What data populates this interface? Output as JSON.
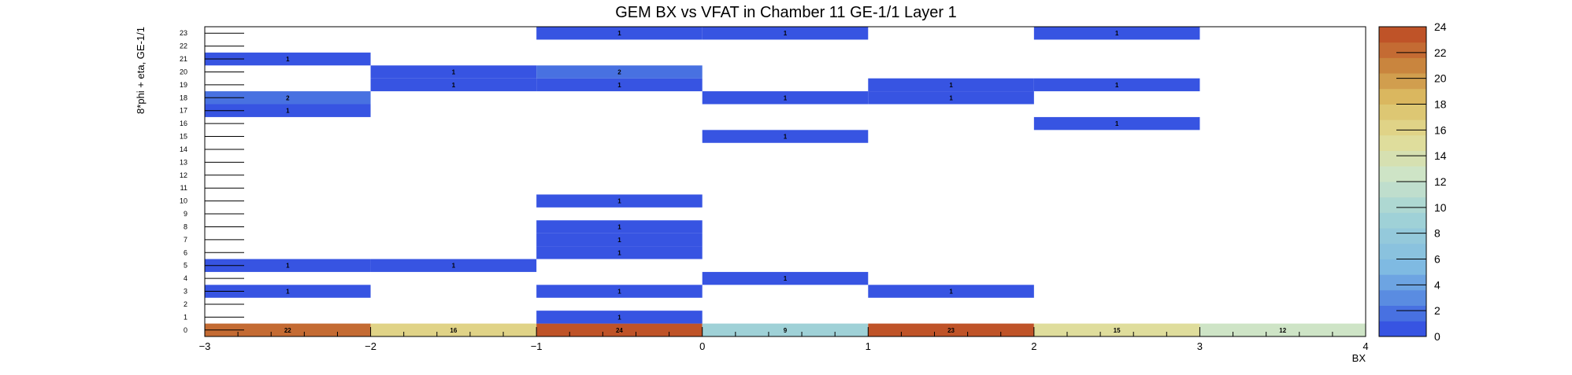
{
  "chart_data": {
    "type": "heatmap",
    "title": "GEM BX vs VFAT in Chamber 11 GE-1/1 Layer 1",
    "xlabel": "BX",
    "ylabel": "8*phi + eta, GE-1/1",
    "xlim": [
      -3,
      4
    ],
    "ylim": [
      0,
      24
    ],
    "x_ticks": [
      "−3",
      "−2",
      "−1",
      "0",
      "1",
      "2",
      "3",
      "4"
    ],
    "y_ticks": [
      "0",
      "1",
      "2",
      "3",
      "4",
      "5",
      "6",
      "7",
      "8",
      "9",
      "10",
      "11",
      "12",
      "13",
      "14",
      "15",
      "16",
      "17",
      "18",
      "19",
      "20",
      "21",
      "22",
      "23"
    ],
    "colorbar": {
      "min": 0,
      "max": 24,
      "ticks": [
        "0",
        "2",
        "4",
        "6",
        "8",
        "10",
        "12",
        "14",
        "16",
        "18",
        "20",
        "22",
        "24"
      ]
    },
    "cells": [
      {
        "bx": -3,
        "vfat": 0,
        "value": 22
      },
      {
        "bx": -2,
        "vfat": 0,
        "value": 16
      },
      {
        "bx": -1,
        "vfat": 0,
        "value": 24
      },
      {
        "bx": 0,
        "vfat": 0,
        "value": 9
      },
      {
        "bx": 1,
        "vfat": 0,
        "value": 23
      },
      {
        "bx": 2,
        "vfat": 0,
        "value": 15
      },
      {
        "bx": 3,
        "vfat": 0,
        "value": 12
      },
      {
        "bx": -1,
        "vfat": 1,
        "value": 1
      },
      {
        "bx": -3,
        "vfat": 3,
        "value": 1
      },
      {
        "bx": -1,
        "vfat": 3,
        "value": 1
      },
      {
        "bx": 1,
        "vfat": 3,
        "value": 1
      },
      {
        "bx": 0,
        "vfat": 4,
        "value": 1
      },
      {
        "bx": -3,
        "vfat": 5,
        "value": 1
      },
      {
        "bx": -2,
        "vfat": 5,
        "value": 1
      },
      {
        "bx": -1,
        "vfat": 6,
        "value": 1
      },
      {
        "bx": -1,
        "vfat": 7,
        "value": 1
      },
      {
        "bx": -1,
        "vfat": 8,
        "value": 1
      },
      {
        "bx": -1,
        "vfat": 10,
        "value": 1
      },
      {
        "bx": 0,
        "vfat": 15,
        "value": 1
      },
      {
        "bx": 2,
        "vfat": 16,
        "value": 1
      },
      {
        "bx": -3,
        "vfat": 17,
        "value": 1
      },
      {
        "bx": -3,
        "vfat": 18,
        "value": 2
      },
      {
        "bx": 0,
        "vfat": 18,
        "value": 1
      },
      {
        "bx": 1,
        "vfat": 18,
        "value": 1
      },
      {
        "bx": -2,
        "vfat": 19,
        "value": 1
      },
      {
        "bx": -1,
        "vfat": 19,
        "value": 1
      },
      {
        "bx": 1,
        "vfat": 19,
        "value": 1
      },
      {
        "bx": 2,
        "vfat": 19,
        "value": 1
      },
      {
        "bx": -2,
        "vfat": 20,
        "value": 1
      },
      {
        "bx": -1,
        "vfat": 20,
        "value": 2
      },
      {
        "bx": -3,
        "vfat": 21,
        "value": 1
      },
      {
        "bx": -1,
        "vfat": 23,
        "value": 1
      },
      {
        "bx": 0,
        "vfat": 23,
        "value": 1
      },
      {
        "bx": 2,
        "vfat": 23,
        "value": 1
      }
    ],
    "grid": false,
    "legend": "colorbar-right"
  }
}
